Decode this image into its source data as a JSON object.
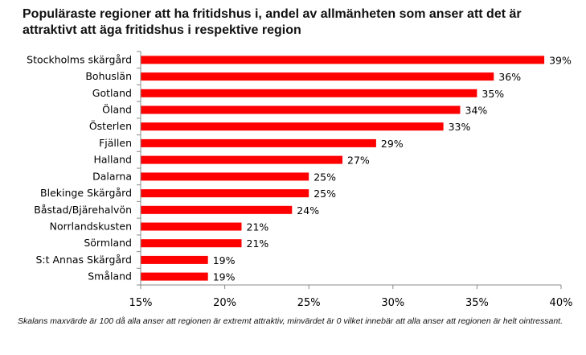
{
  "chart_data": {
    "type": "bar",
    "orientation": "horizontal",
    "title": "Populäraste regioner att ha fritidshus i, andel av allmänheten som anser att det är attraktivt att äga fritidshus i respektive region",
    "categories": [
      "Stockholms skärgård",
      "Bohuslän",
      "Gotland",
      "Öland",
      "Österlen",
      "Fjällen",
      "Halland",
      "Dalarna",
      "Blekinge Skärgård",
      "Båstad/Bjärehalvön",
      "Norrlandskusten",
      "Sörmland",
      "S:t Annas Skärgård",
      "Småland"
    ],
    "values": [
      39,
      36,
      35,
      34,
      33,
      29,
      27,
      25,
      25,
      24,
      21,
      21,
      19,
      19
    ],
    "data_labels": [
      "39%",
      "36%",
      "35%",
      "34%",
      "33%",
      "29%",
      "27%",
      "25%",
      "25%",
      "24%",
      "21%",
      "21%",
      "19%",
      "19%"
    ],
    "xlim": [
      15,
      40
    ],
    "xticks": [
      15,
      20,
      25,
      30,
      35,
      40
    ],
    "xtick_labels": [
      "15%",
      "20%",
      "25%",
      "30%",
      "35%",
      "40%"
    ],
    "bar_color": "#ff0000",
    "grid": false,
    "legend": "none"
  },
  "footnote": "Skalans maxvärde är 100 då alla anser att regionen är extremt attraktiv, minvärdet är 0 vilket innebär att alla anser att regionen är helt ointressant."
}
